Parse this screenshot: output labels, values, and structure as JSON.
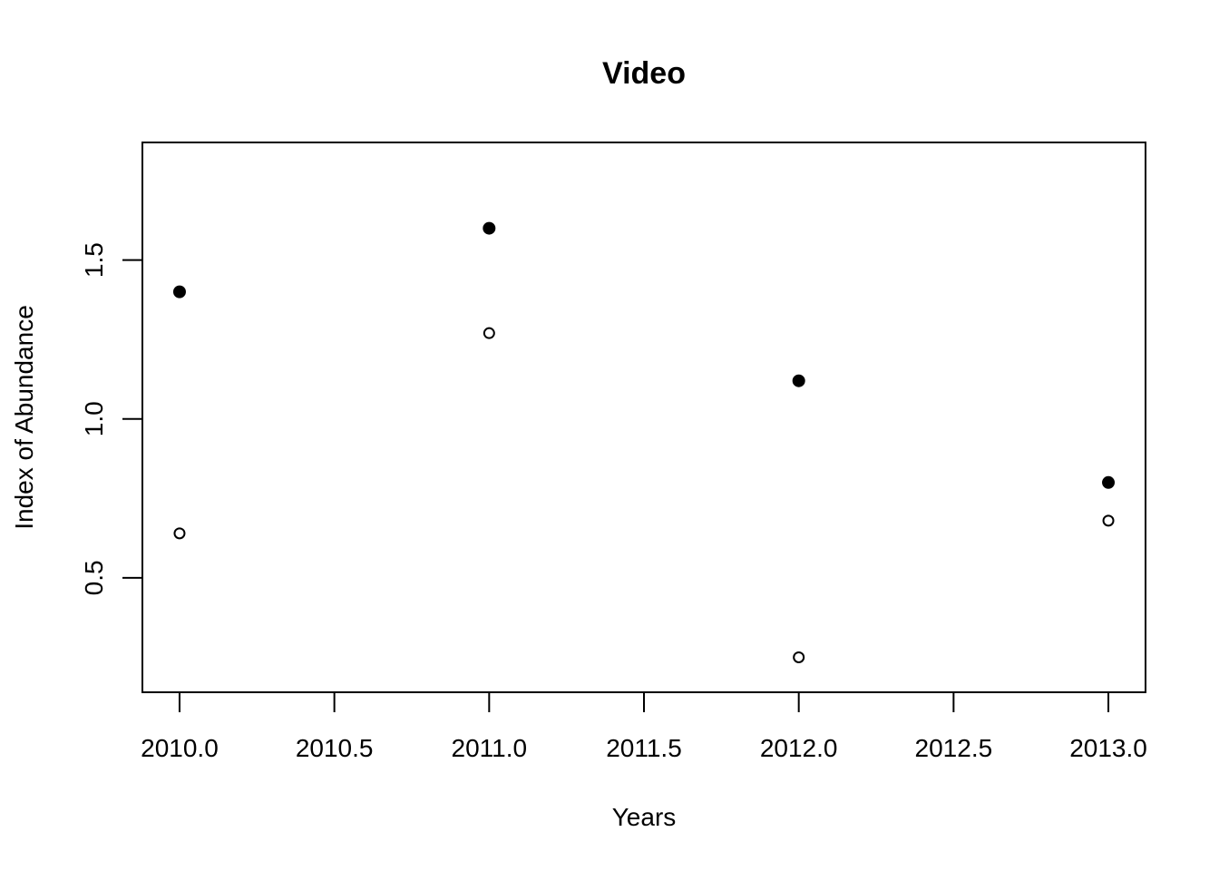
{
  "chart_data": {
    "type": "scatter",
    "title": "Video",
    "xlabel": "Years",
    "ylabel": "Index of Abundance",
    "xlim": [
      2009.88,
      2013.12
    ],
    "ylim": [
      0.14,
      1.87
    ],
    "x_ticks": [
      2010.0,
      2010.5,
      2011.0,
      2011.5,
      2012.0,
      2012.5,
      2013.0
    ],
    "x_tick_labels": [
      "2010.0",
      "2010.5",
      "2011.0",
      "2011.5",
      "2012.0",
      "2012.5",
      "2013.0"
    ],
    "y_ticks": [
      0.5,
      1.0,
      1.5
    ],
    "y_tick_labels": [
      "0.5",
      "1.0",
      "1.5"
    ],
    "grid": false,
    "series": [
      {
        "marker": "filled-circle",
        "color": "#000000",
        "x": [
          2010,
          2011,
          2012,
          2013
        ],
        "y": [
          1.4,
          1.6,
          1.12,
          0.8
        ]
      },
      {
        "marker": "open-circle",
        "color": "#000000",
        "x": [
          2010,
          2011,
          2012,
          2013
        ],
        "y": [
          0.64,
          1.27,
          0.25,
          0.68
        ]
      }
    ]
  }
}
